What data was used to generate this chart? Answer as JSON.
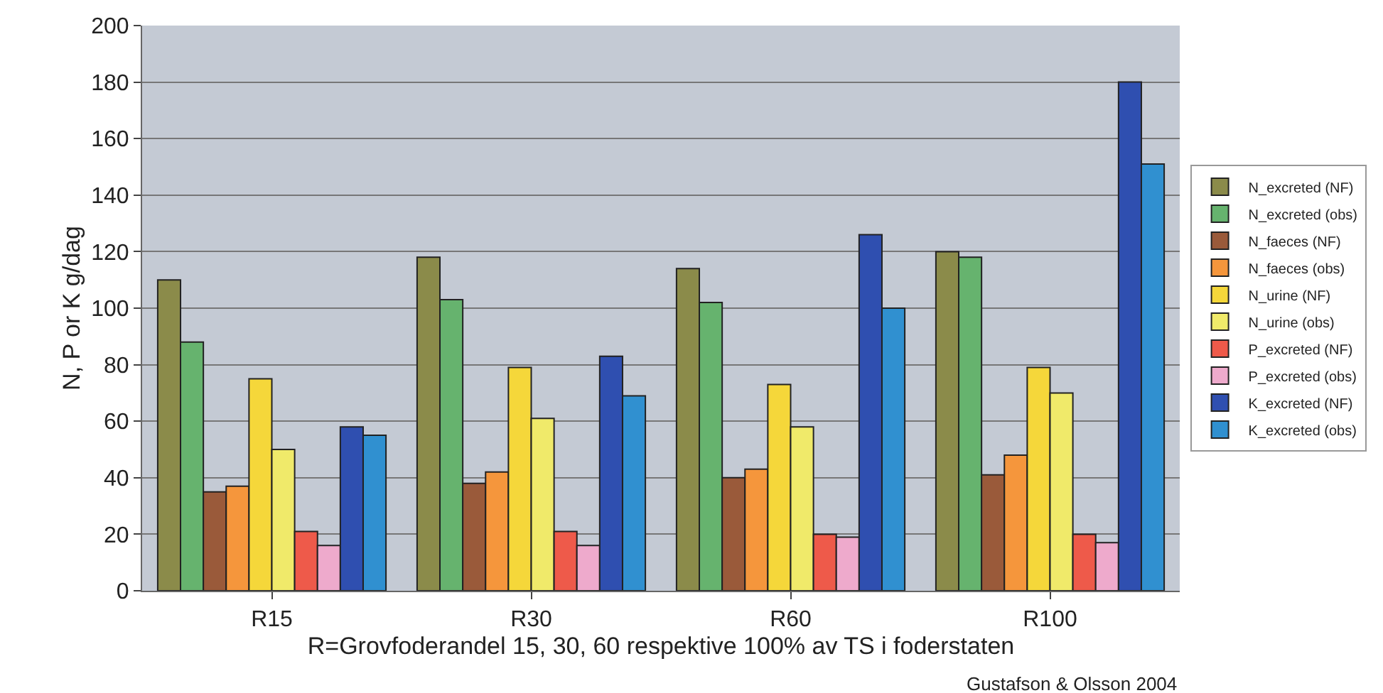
{
  "chart_data": {
    "type": "bar",
    "xlabel": "R=Grovfoderandel 15, 30, 60 respektive 100% av TS i foderstaten",
    "ylabel": "N, P or K g/dag",
    "categories": [
      "R15",
      "R30",
      "R60",
      "R100"
    ],
    "series": [
      {
        "name": "N_excreted (NF)",
        "color": "#8b8b4a",
        "values": [
          110,
          118,
          114,
          120
        ]
      },
      {
        "name": "N_excreted (obs)",
        "color": "#66b36e",
        "values": [
          88,
          103,
          102,
          118
        ]
      },
      {
        "name": "N_faeces (NF)",
        "color": "#9a5a3a",
        "values": [
          35,
          38,
          40,
          41
        ]
      },
      {
        "name": "N_faeces (obs)",
        "color": "#f5963c",
        "values": [
          37,
          42,
          43,
          48
        ]
      },
      {
        "name": "N_urine (NF)",
        "color": "#f5d73a",
        "values": [
          75,
          79,
          73,
          79
        ]
      },
      {
        "name": "N_urine (obs)",
        "color": "#f0ea6a",
        "values": [
          50,
          61,
          58,
          70
        ]
      },
      {
        "name": "P_excreted (NF)",
        "color": "#ee5a4a",
        "values": [
          21,
          21,
          20,
          20
        ]
      },
      {
        "name": "P_excreted (obs)",
        "color": "#eeaacc",
        "values": [
          16,
          16,
          19,
          17
        ]
      },
      {
        "name": "K_excreted (NF)",
        "color": "#2f4fb0",
        "values": [
          58,
          83,
          126,
          180
        ]
      },
      {
        "name": "K_excreted (obs)",
        "color": "#3090d0",
        "values": [
          55,
          69,
          100,
          151
        ]
      }
    ],
    "ylim": [
      0,
      200
    ],
    "yticks": [
      0,
      20,
      40,
      60,
      80,
      100,
      120,
      140,
      160,
      180,
      200
    ],
    "grid": "y",
    "legend": "right",
    "annotations": [
      "Gustafson & Olsson 2004"
    ]
  }
}
